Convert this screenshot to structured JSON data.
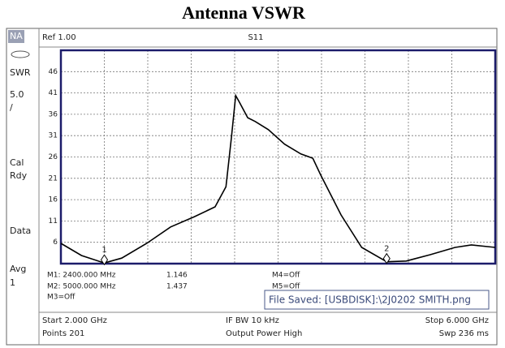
{
  "chart_data": {
    "type": "line",
    "title": "Antenna VSWR",
    "x": [
      2.0,
      2.19,
      2.4,
      2.56,
      2.79,
      3.01,
      3.23,
      3.42,
      3.52,
      3.57,
      3.61,
      3.64,
      3.72,
      3.79,
      3.91,
      4.06,
      4.21,
      4.32,
      4.39,
      4.58,
      4.77,
      5.0,
      5.18,
      5.4,
      5.63,
      5.78,
      6.0
    ],
    "series": [
      {
        "name": "S11",
        "color": "#000000",
        "values": [
          5.75,
          2.9,
          1.15,
          2.3,
          5.75,
          9.6,
          12,
          14.3,
          19,
          30.5,
          40.4,
          39,
          35.2,
          34.3,
          32.4,
          29,
          26.7,
          25.7,
          21.9,
          12.4,
          4.8,
          1.44,
          1.6,
          3.1,
          4.8,
          5.4,
          4.8
        ]
      }
    ],
    "xlim": [
      2,
      6
    ],
    "xticks": [
      2.0,
      2.4,
      2.8,
      3.2,
      3.6,
      4.0,
      4.4,
      4.8,
      5.2,
      5.6,
      6.0
    ],
    "ylim": [
      1,
      51
    ],
    "yticks": [
      6,
      11,
      16,
      21,
      26,
      31,
      36,
      41,
      46
    ],
    "grid": true,
    "markers": [
      {
        "label": "1",
        "x": 2.4,
        "y": 1.146
      },
      {
        "label": "2",
        "x": 5.0,
        "y": 1.437
      }
    ]
  },
  "instrument": {
    "sidebar": [
      "NA",
      "SWR",
      "5.0",
      "/",
      "Cal",
      "Rdy",
      "Data",
      "Avg",
      "1"
    ],
    "ref": "Ref 1.00",
    "marker_table": {
      "m1": "M1: 2400.000 MHz",
      "m2": "M2: 5000.000 MHz",
      "m3": "M3=Off",
      "m4": "M4=Off",
      "m5": "M5=Off"
    },
    "file_saved": "File Saved: [USBDISK]:\\2J0202 SMITH.png",
    "footer": [
      "Start 2.000 GHz",
      "IF BW 10 kHz",
      "Stop 6.000 GHz",
      "Points 201",
      "Output Power High",
      "Swp 236 ms"
    ]
  }
}
